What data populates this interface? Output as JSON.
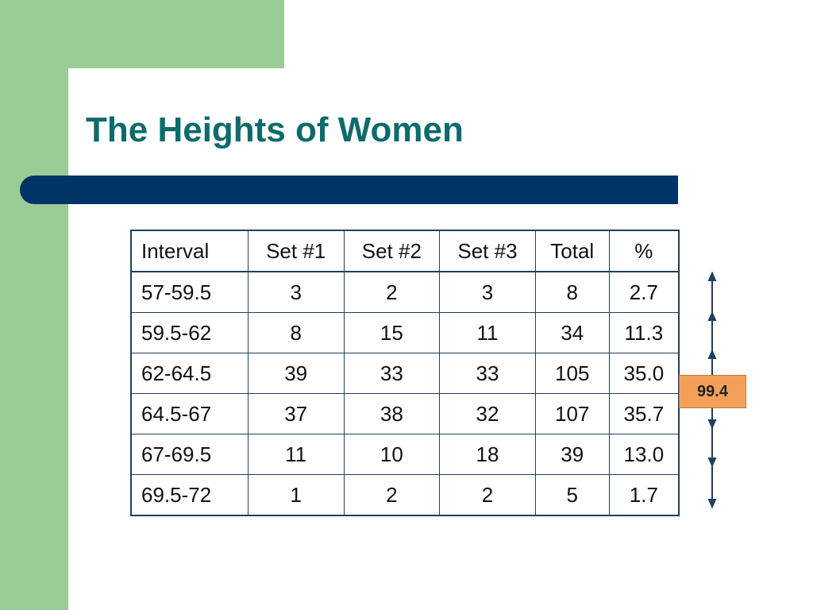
{
  "slide": {
    "title": "The Heights of Women"
  },
  "colors": {
    "green": "#9ccc95",
    "navy": "#003366",
    "title": "#0d6b6b",
    "badge": "#f5a05a"
  },
  "table": {
    "headers": [
      "Interval",
      "Set #1",
      "Set #2",
      "Set #3",
      "Total",
      "%"
    ],
    "rows": [
      [
        "57-59.5",
        "3",
        "2",
        "3",
        "8",
        "2.7"
      ],
      [
        "59.5-62",
        "8",
        "15",
        "11",
        "34",
        "11.3"
      ],
      [
        "62-64.5",
        "39",
        "33",
        "33",
        "105",
        "35.0"
      ],
      [
        "64.5-67",
        "37",
        "38",
        "32",
        "107",
        "35.7"
      ],
      [
        "67-69.5",
        "11",
        "10",
        "18",
        "39",
        "13.0"
      ],
      [
        "69.5-72",
        "1",
        "2",
        "2",
        "5",
        "1.7"
      ]
    ]
  },
  "annotation": {
    "label": "99.4",
    "icon": "double-headed-arrows"
  }
}
